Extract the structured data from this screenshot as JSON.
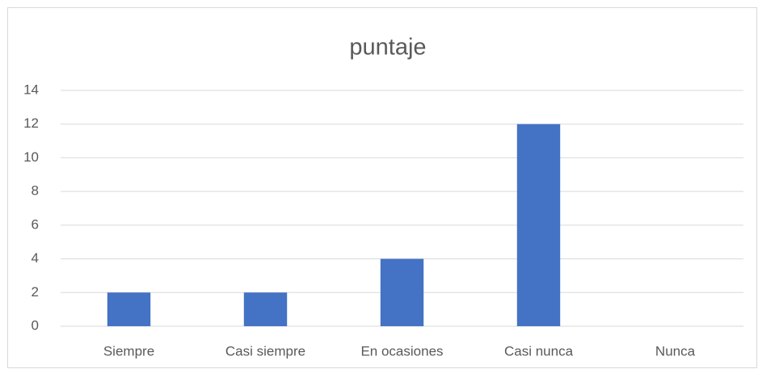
{
  "chart_data": {
    "type": "bar",
    "title": "puntaje",
    "categories": [
      "Siempre",
      "Casi siempre",
      "En ocasiones",
      "Casi nunca",
      "Nunca"
    ],
    "values": [
      2,
      2,
      4,
      12,
      0
    ],
    "color": "#4472c4",
    "ylim": [
      0,
      14
    ],
    "yticks": [
      0,
      2,
      4,
      6,
      8,
      10,
      12,
      14
    ],
    "grid": true
  }
}
